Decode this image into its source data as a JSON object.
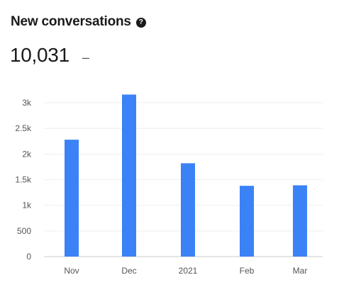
{
  "header": {
    "title": "New conversations",
    "help_icon": "question-circle-icon",
    "help_glyph": "?"
  },
  "metric": {
    "value": "10,031",
    "trend": "–"
  },
  "colors": {
    "bar": "#3b82f6",
    "grid": "#eeeeee",
    "axis": "#cccccc"
  },
  "chart_data": {
    "type": "bar",
    "categories": [
      "Nov",
      "Dec",
      "2021",
      "Feb",
      "Mar"
    ],
    "values": [
      2280,
      3160,
      1820,
      1380,
      1390
    ],
    "ylim": [
      0,
      3000
    ],
    "yticks": [
      0,
      500,
      1000,
      1500,
      2000,
      2500,
      3000
    ],
    "ytick_labels": [
      "0",
      "500",
      "1k",
      "1.5k",
      "2k",
      "2.5k",
      "3k"
    ],
    "grid": true,
    "legend": "none"
  }
}
